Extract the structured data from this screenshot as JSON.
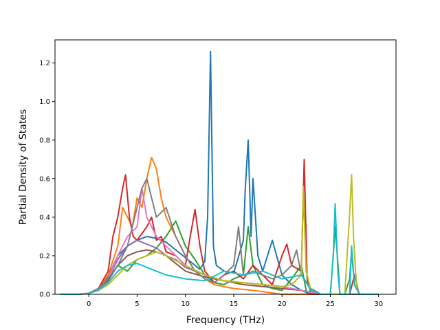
{
  "chart_data": {
    "type": "line",
    "title": "",
    "xlabel": "Frequency (THz)",
    "ylabel": "Partial Density of States",
    "xlim": [
      -3.5,
      31.8
    ],
    "ylim": [
      0.0,
      1.32
    ],
    "xticks": [
      0,
      5,
      10,
      15,
      20,
      25,
      30
    ],
    "yticks": [
      0.0,
      0.2,
      0.4,
      0.6,
      0.8,
      1.0,
      1.2
    ],
    "xtick_labels": [
      "0",
      "5",
      "10",
      "15",
      "20",
      "25",
      "30"
    ],
    "ytick_labels": [
      "0.0",
      "0.2",
      "0.4",
      "0.6",
      "0.8",
      "1.0",
      "1.2"
    ],
    "grid": false,
    "legend": "none",
    "series": [
      {
        "color": "#1f77b4",
        "x": [
          -3,
          -1,
          0,
          1,
          2,
          3,
          4,
          5,
          6,
          7,
          8,
          9,
          10,
          11,
          11.5,
          12,
          12.3,
          12.6,
          12.9,
          13.2,
          14,
          15,
          16,
          16.2,
          16.5,
          16.8,
          17,
          17.5,
          18,
          19,
          20,
          21,
          22,
          23,
          24,
          30
        ],
        "y": [
          0,
          0,
          0.005,
          0.03,
          0.09,
          0.2,
          0.25,
          0.28,
          0.3,
          0.29,
          0.27,
          0.23,
          0.19,
          0.15,
          0.13,
          0.17,
          0.4,
          1.26,
          0.25,
          0.15,
          0.12,
          0.11,
          0.28,
          0.55,
          0.8,
          0.3,
          0.6,
          0.2,
          0.12,
          0.28,
          0.1,
          0.05,
          0.02,
          0,
          0,
          0
        ]
      },
      {
        "color": "#ff7f0e",
        "x": [
          -3,
          -1,
          0,
          1,
          2,
          3,
          3.5,
          4,
          4.5,
          5,
          5.5,
          6,
          6.5,
          7,
          7.5,
          8,
          9,
          10,
          11,
          12,
          13,
          15,
          17,
          20,
          30
        ],
        "y": [
          0,
          0,
          0.005,
          0.03,
          0.1,
          0.25,
          0.45,
          0.4,
          0.35,
          0.5,
          0.45,
          0.6,
          0.71,
          0.65,
          0.5,
          0.4,
          0.3,
          0.2,
          0.12,
          0.08,
          0.05,
          0.03,
          0.02,
          0,
          0
        ]
      },
      {
        "color": "#2ca02c",
        "x": [
          -3,
          -1,
          0,
          1,
          2,
          3,
          4,
          5,
          6,
          7,
          8,
          9,
          10,
          11,
          12,
          13,
          14,
          15,
          16,
          16.5,
          17,
          18,
          19,
          20,
          21,
          22,
          22.5,
          23,
          24,
          25,
          25.3,
          25.5,
          25.8,
          26,
          26.5,
          27,
          27.2,
          27.5,
          28,
          30
        ],
        "y": [
          0,
          0,
          0.005,
          0.03,
          0.08,
          0.15,
          0.12,
          0.18,
          0.2,
          0.24,
          0.3,
          0.38,
          0.25,
          0.18,
          0.1,
          0.06,
          0.05,
          0.08,
          0.1,
          0.35,
          0.15,
          0.05,
          0.03,
          0.02,
          0.08,
          0.15,
          0.02,
          0,
          0,
          0,
          0.2,
          0.35,
          0.15,
          0,
          0,
          0.08,
          0.22,
          0.05,
          0,
          0
        ]
      },
      {
        "color": "#d62728",
        "x": [
          -3,
          -1,
          0,
          1,
          2,
          2.5,
          3,
          3.5,
          3.8,
          4.2,
          4.6,
          5,
          6,
          6.5,
          7,
          7.5,
          8,
          9,
          10,
          10.5,
          11,
          11.5,
          12,
          13,
          14,
          15,
          16,
          17,
          18,
          19,
          20,
          20.5,
          21,
          22,
          22.3,
          22.6,
          23,
          24,
          27,
          27.5,
          28,
          30
        ],
        "y": [
          0,
          0,
          0.005,
          0.03,
          0.12,
          0.3,
          0.4,
          0.55,
          0.62,
          0.4,
          0.3,
          0.28,
          0.35,
          0.4,
          0.28,
          0.3,
          0.22,
          0.2,
          0.15,
          0.3,
          0.44,
          0.25,
          0.12,
          0.06,
          0.1,
          0.12,
          0.08,
          0.15,
          0.1,
          0.05,
          0.2,
          0.26,
          0.15,
          0.12,
          0.7,
          0.08,
          0,
          0,
          0,
          0.1,
          0,
          0
        ]
      },
      {
        "color": "#9467bd",
        "x": [
          -3,
          -1,
          0,
          1,
          2,
          3,
          4,
          5,
          6,
          7,
          8,
          9,
          10,
          12,
          14,
          16,
          18,
          20,
          22,
          24,
          30
        ],
        "y": [
          0,
          0,
          0.005,
          0.03,
          0.08,
          0.18,
          0.25,
          0.28,
          0.26,
          0.24,
          0.2,
          0.18,
          0.14,
          0.1,
          0.07,
          0.06,
          0.05,
          0.04,
          0.02,
          0,
          0
        ]
      },
      {
        "color": "#8c564b",
        "x": [
          -3,
          -1,
          0,
          1,
          2,
          3,
          4,
          5,
          6,
          7,
          8,
          9,
          10,
          12,
          14,
          16,
          18,
          20,
          22,
          24,
          30
        ],
        "y": [
          0,
          0,
          0.005,
          0.03,
          0.07,
          0.15,
          0.2,
          0.22,
          0.23,
          0.22,
          0.2,
          0.16,
          0.12,
          0.09,
          0.07,
          0.05,
          0.04,
          0.03,
          0.02,
          0,
          0
        ]
      },
      {
        "color": "#e377c2",
        "x": [
          -3,
          -1,
          0,
          1,
          2,
          3,
          4,
          5,
          5.5,
          6,
          7,
          8,
          9,
          10,
          12,
          14,
          16,
          18,
          20,
          22,
          24,
          30
        ],
        "y": [
          0,
          0,
          0.005,
          0.03,
          0.08,
          0.2,
          0.3,
          0.35,
          0.55,
          0.4,
          0.3,
          0.25,
          0.2,
          0.15,
          0.1,
          0.07,
          0.06,
          0.05,
          0.04,
          0.02,
          0,
          0
        ]
      },
      {
        "color": "#7f7f7f",
        "x": [
          -3,
          -1,
          0,
          1,
          2,
          3,
          4,
          5,
          5.5,
          6,
          6.5,
          7,
          8,
          9,
          10,
          11,
          12,
          13,
          14,
          15,
          15.5,
          16,
          17,
          18,
          19,
          20,
          21,
          21.5,
          22,
          23,
          24,
          30
        ],
        "y": [
          0,
          0,
          0.005,
          0.03,
          0.08,
          0.15,
          0.25,
          0.45,
          0.55,
          0.6,
          0.5,
          0.4,
          0.45,
          0.3,
          0.2,
          0.12,
          0.08,
          0.06,
          0.1,
          0.15,
          0.35,
          0.1,
          0.12,
          0.1,
          0.08,
          0.1,
          0.15,
          0.23,
          0.1,
          0.03,
          0,
          0
        ]
      },
      {
        "color": "#bcbd22",
        "x": [
          -3,
          -1,
          0,
          1,
          2,
          3,
          4,
          5,
          6,
          7,
          8,
          10,
          12,
          14,
          16,
          18,
          20,
          21,
          22,
          22.2,
          22.5,
          23,
          24,
          26,
          26.5,
          27,
          27.2,
          27.4,
          27.7,
          28,
          30
        ],
        "y": [
          0,
          0,
          0.005,
          0.02,
          0.05,
          0.1,
          0.15,
          0.18,
          0.2,
          0.22,
          0.2,
          0.15,
          0.1,
          0.07,
          0.06,
          0.05,
          0.04,
          0.05,
          0.1,
          0.56,
          0.12,
          0.02,
          0,
          0,
          0,
          0.42,
          0.62,
          0.3,
          0.05,
          0,
          0
        ]
      },
      {
        "color": "#17becf",
        "x": [
          -3,
          -1,
          0,
          1,
          2,
          3,
          4,
          5,
          6,
          7,
          8,
          9,
          10,
          12,
          14,
          16,
          18,
          20,
          22,
          23,
          24,
          25,
          25.3,
          25.5,
          25.8,
          26,
          27,
          27.2,
          27.5,
          28,
          30
        ],
        "y": [
          0,
          0,
          0.005,
          0.02,
          0.06,
          0.12,
          0.15,
          0.16,
          0.14,
          0.12,
          0.1,
          0.09,
          0.08,
          0.07,
          0.12,
          0.1,
          0.12,
          0.08,
          0.1,
          0.02,
          0,
          0,
          0.2,
          0.47,
          0.1,
          0,
          0,
          0.25,
          0.05,
          0,
          0
        ]
      }
    ]
  }
}
